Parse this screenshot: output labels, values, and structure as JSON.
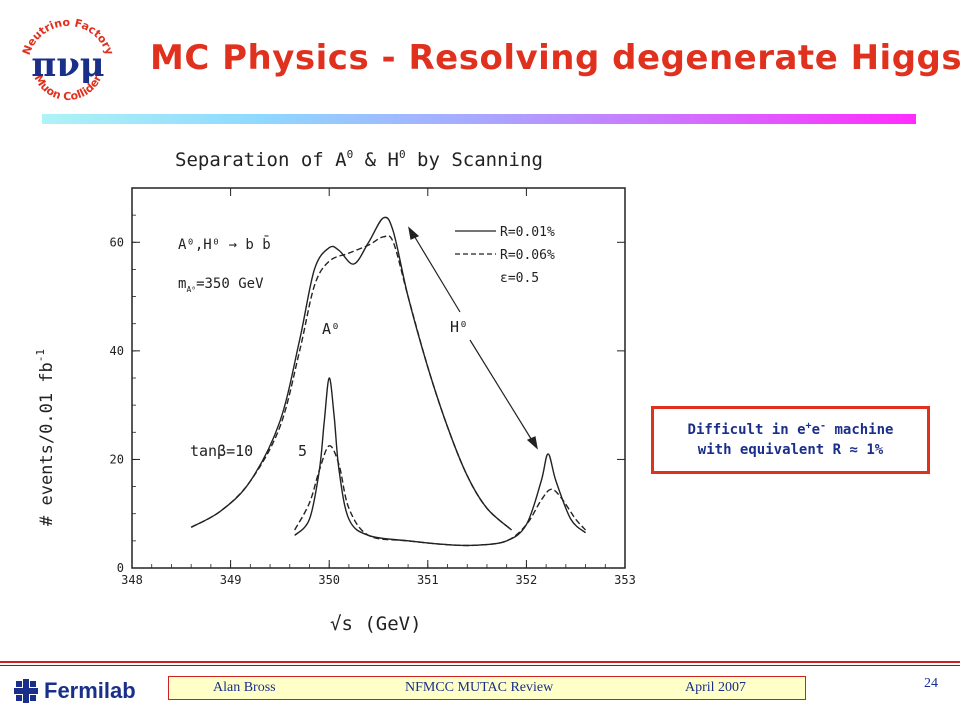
{
  "logo": {
    "top_text": "Neutrino Factory",
    "bottom_text": "Muon Collider",
    "symbols": "πνμ"
  },
  "title": "MC Physics - Resolving degenerate Higgs",
  "plot": {
    "title": "Separation of A",
    "title_rest": " & H",
    "title_end": " by Scanning",
    "ylabel": "# events/0.01 fb",
    "ylabel_sup": "-1",
    "xlabel": "√s (GeV)",
    "process": "A⁰,H⁰ → b b̄",
    "mass": "m",
    "mass_rest": "=350 GeV",
    "tanb": "tanβ=10",
    "tanb_alt": "5",
    "peak_a": "A⁰",
    "peak_h": "H⁰",
    "legend": [
      "R=0.01%",
      "R=0.06%",
      "ε=0.5"
    ]
  },
  "chart_data": {
    "type": "line",
    "title": "Separation of A⁰ & H⁰ by Scanning",
    "xlabel": "√s (GeV)",
    "ylabel": "# events/0.01 fb⁻¹",
    "xlim": [
      348,
      353
    ],
    "ylim": [
      0,
      70
    ],
    "xticks": [
      348,
      349,
      350,
      351,
      352,
      353
    ],
    "yticks": [
      0,
      20,
      40,
      60
    ],
    "series": [
      {
        "name": "R=0.01%",
        "style": "solid",
        "group": "tanβ=10",
        "x": [
          348.6,
          348.9,
          349.2,
          349.5,
          349.7,
          349.85,
          350.0,
          350.1,
          350.25,
          350.4,
          350.55,
          350.65,
          350.8,
          351.0,
          351.2,
          351.4,
          351.6,
          351.85
        ],
        "y": [
          7.5,
          10.5,
          16,
          27,
          42,
          55,
          59,
          58.5,
          56,
          60,
          64.5,
          62,
          50,
          37,
          26,
          17,
          11,
          7
        ]
      },
      {
        "name": "R=0.06%",
        "style": "dashed",
        "group": "tanβ=10",
        "x": [
          348.6,
          348.9,
          349.2,
          349.5,
          349.7,
          349.85,
          350.0,
          350.2,
          350.4,
          350.55,
          350.65,
          350.8,
          351.0,
          351.2,
          351.4,
          351.6,
          351.85
        ],
        "y": [
          7.5,
          10.5,
          16,
          26,
          40,
          52,
          56.5,
          58,
          59.5,
          61,
          60,
          50,
          37,
          26,
          17,
          11,
          7
        ]
      },
      {
        "name": "R=0.01%",
        "style": "solid",
        "group": "tanβ=5",
        "x": [
          349.65,
          349.8,
          349.9,
          349.95,
          350.0,
          350.05,
          350.1,
          350.2,
          350.4,
          350.8,
          351.2,
          351.5,
          351.8,
          352.0,
          352.15,
          352.22,
          352.3,
          352.45,
          352.6
        ],
        "y": [
          6,
          9,
          18,
          27,
          35,
          28,
          18,
          9,
          6,
          5,
          4.3,
          4.2,
          5,
          8,
          16,
          21,
          16,
          9,
          6.5
        ]
      },
      {
        "name": "R=0.06%",
        "style": "dashed",
        "group": "tanβ=5",
        "x": [
          349.65,
          349.8,
          349.9,
          350.0,
          350.1,
          350.2,
          350.4,
          350.8,
          351.2,
          351.5,
          351.8,
          352.0,
          352.15,
          352.25,
          352.35,
          352.5,
          352.6
        ],
        "y": [
          7,
          12,
          18,
          22.5,
          19,
          11,
          6,
          5,
          4.3,
          4.2,
          5,
          8,
          12.5,
          14.5,
          13,
          9,
          7
        ]
      }
    ]
  },
  "callout": {
    "line1_a": "Difficult in e",
    "line1_b": "+",
    "line1_c": "e",
    "line1_d": "-",
    "line1_e": " machine",
    "line2": "with equivalent R ≈ 1%"
  },
  "footer": {
    "brand": "Fermilab",
    "author": "Alan Bross",
    "event": "NFMCC MUTAC Review",
    "date": "April 2007",
    "page": "24"
  },
  "colors": {
    "title": "#e0301e",
    "accent_blue": "#1a2f8a",
    "footer_box": "#ffffc8"
  }
}
